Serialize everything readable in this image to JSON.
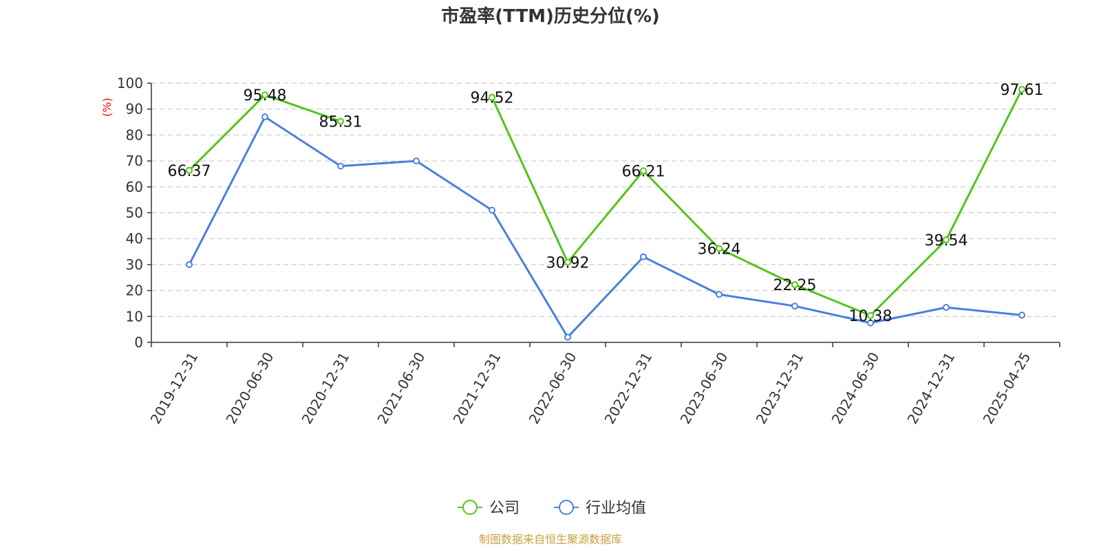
{
  "chart_data": {
    "type": "line",
    "title": "市盈率(TTM)历史分位(%)",
    "xlabel": "",
    "ylabel": "(%)",
    "ylim": [
      0,
      100
    ],
    "yticks": [
      0,
      10,
      20,
      30,
      40,
      50,
      60,
      70,
      80,
      90,
      100
    ],
    "grid": true,
    "legend_position": "bottom-center",
    "categories": [
      "2019-12-31",
      "2020-06-30",
      "2020-12-31",
      "2021-06-30",
      "2021-12-31",
      "2022-06-30",
      "2022-12-31",
      "2023-06-30",
      "2023-12-31",
      "2024-06-30",
      "2024-12-31",
      "2025-04-25"
    ],
    "series": [
      {
        "name": "公司",
        "color": "#52c41a",
        "values": [
          66.37,
          95.48,
          85.31,
          null,
          94.52,
          30.92,
          66.21,
          36.24,
          22.25,
          10.38,
          39.54,
          97.61
        ],
        "labels": [
          "66.37",
          "95.48",
          "85.31",
          "",
          "94.52",
          "30.92",
          "66.21",
          "36.24",
          "22.25",
          "10.38",
          "39.54",
          "97.61"
        ]
      },
      {
        "name": "行业均值",
        "color": "#4a7fdc",
        "values": [
          30,
          87,
          68,
          70,
          51,
          2,
          33,
          18.5,
          14,
          7.5,
          13.5,
          10.5
        ]
      }
    ],
    "source": "制图数据来自恒生聚源数据库",
    "colors": {
      "ylabel": "#ff0000",
      "source": "#c8a040",
      "grid": "#cccccc",
      "axis": "#333333"
    }
  }
}
